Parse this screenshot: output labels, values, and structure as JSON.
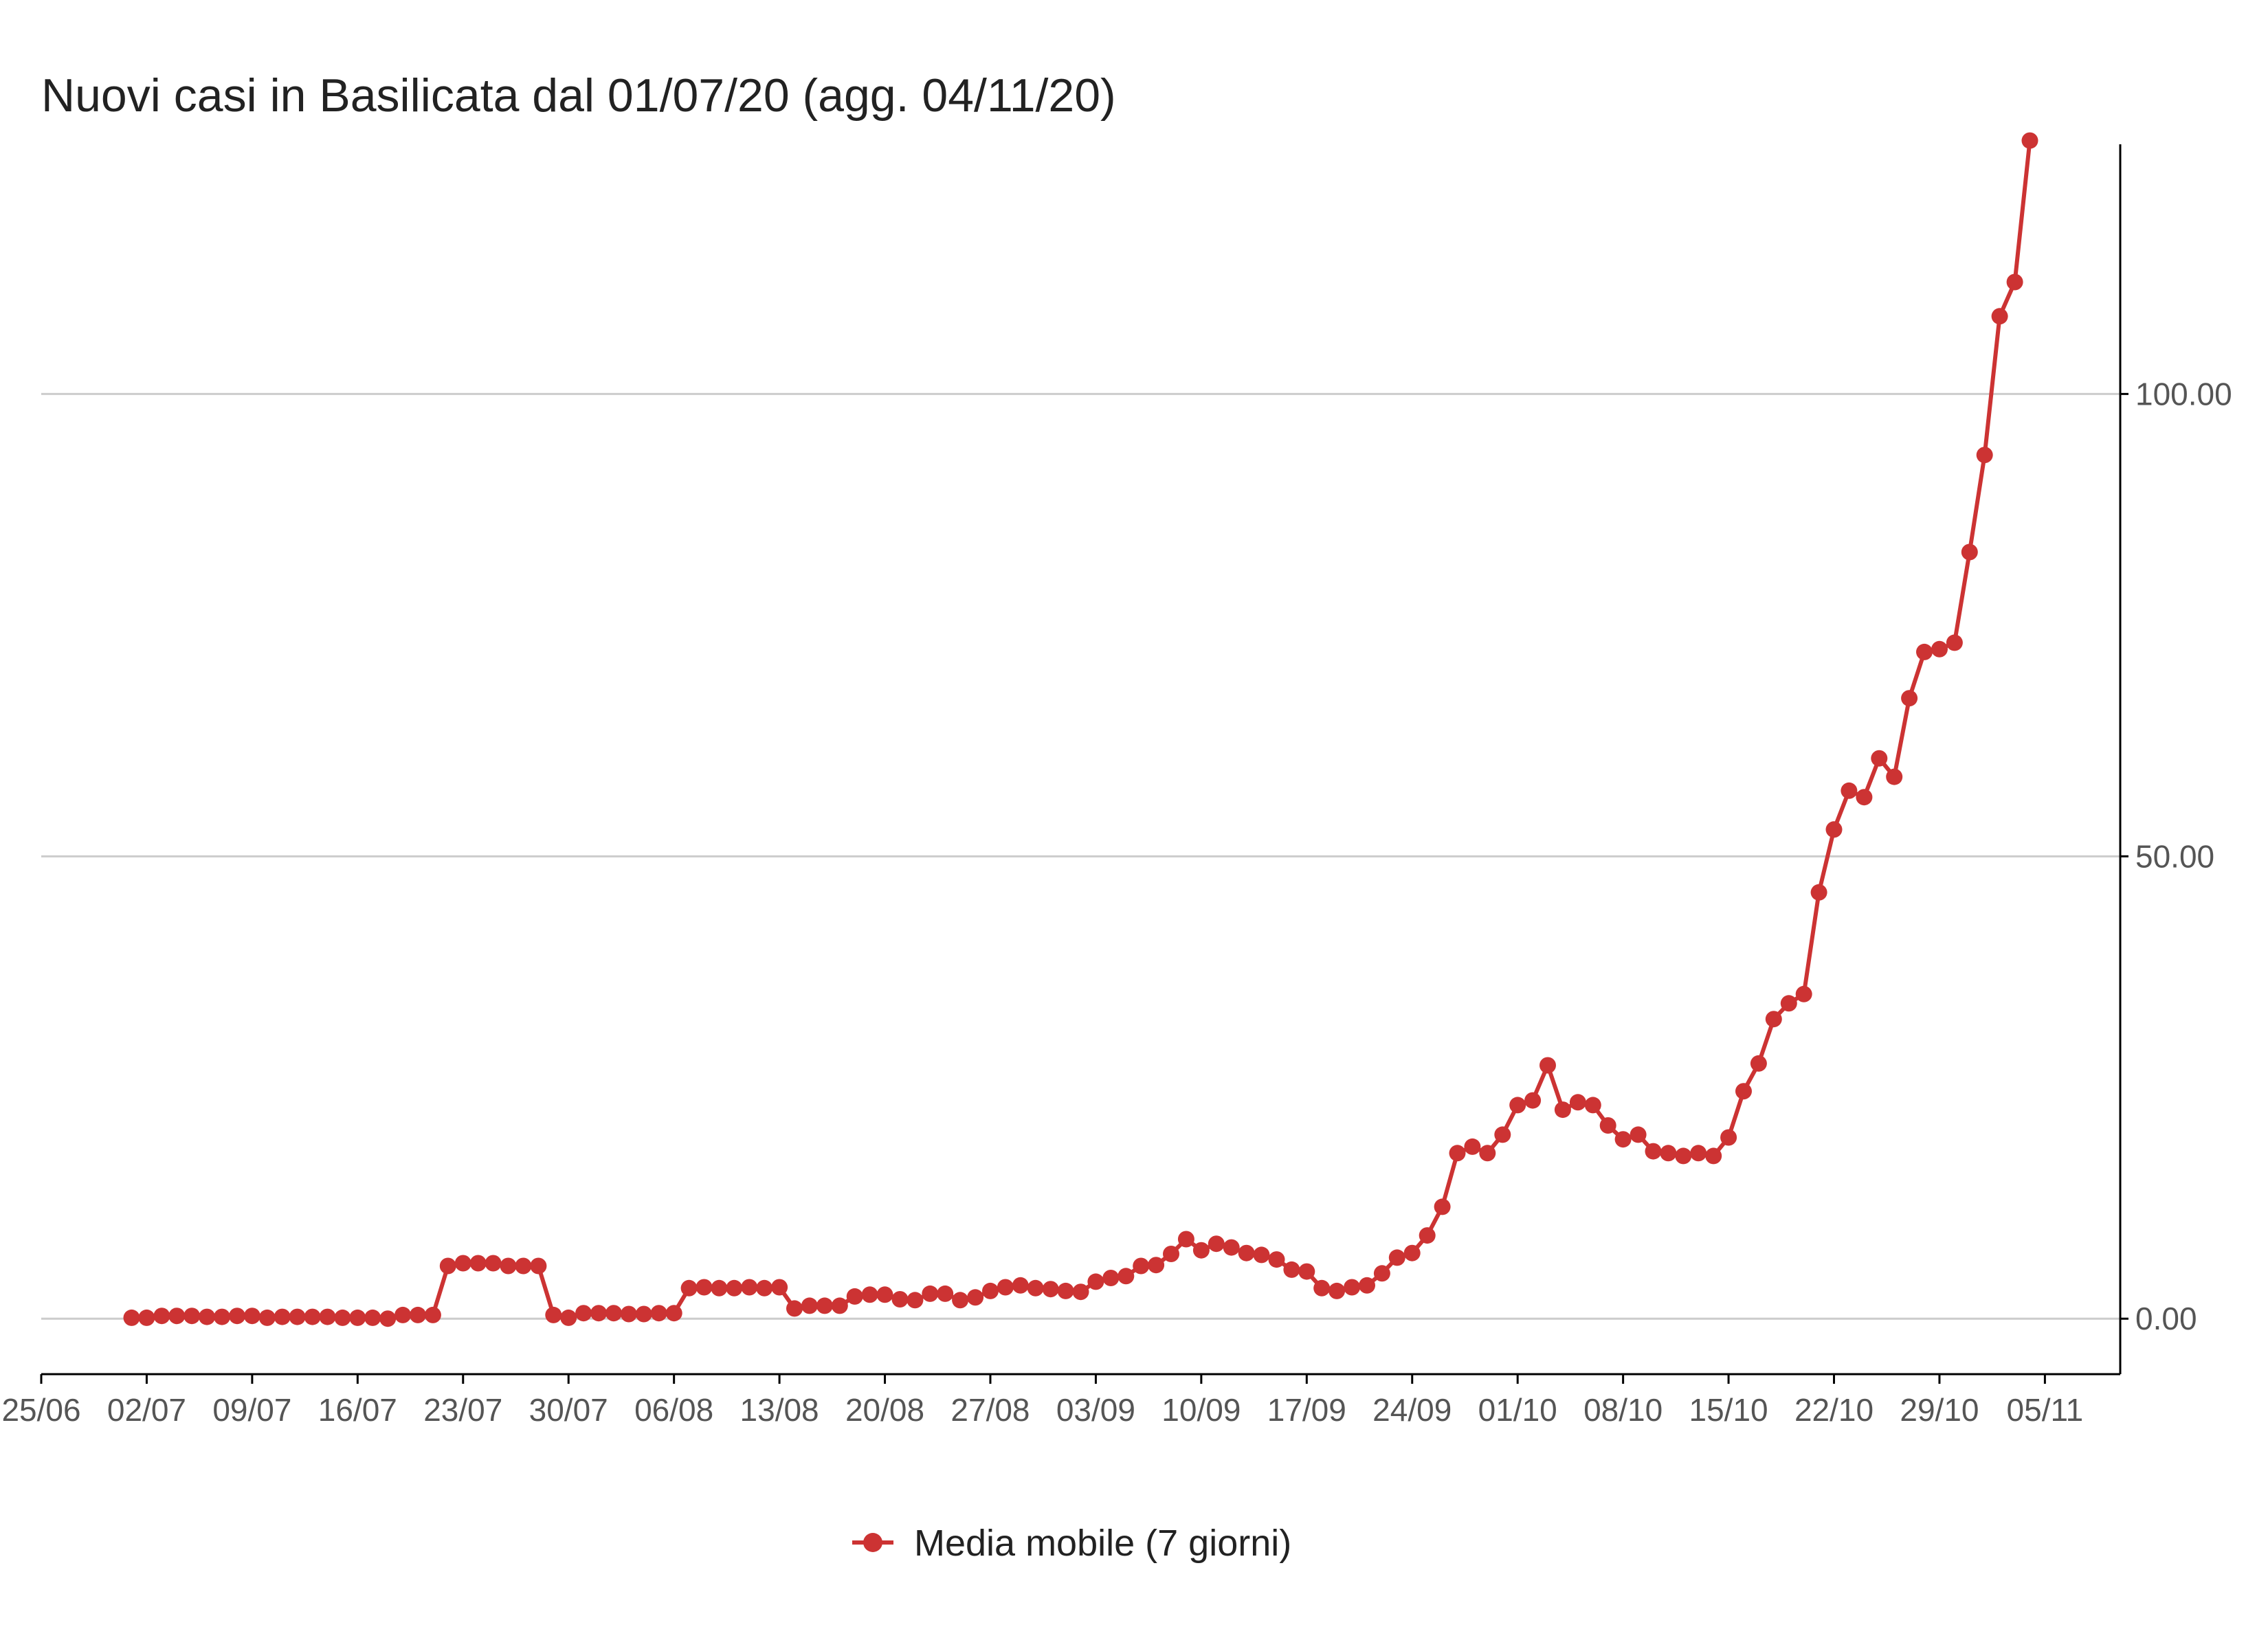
{
  "title": "Nuovi casi in Basilicata dal 01/07/20 (agg. 04/11/20)",
  "colors": {
    "series": "#cc3333",
    "grid": "#cccccc",
    "axis": "#000000"
  },
  "chart_data": {
    "type": "line",
    "title": "Nuovi casi in Basilicata dal 01/07/20 (agg. 04/11/20)",
    "xlabel": "",
    "ylabel": "",
    "x_start": "2020-07-01",
    "x_end": "2020-11-04",
    "xlim": [
      "2020-06-25",
      "2020-11-10"
    ],
    "ylim": [
      -6,
      127
    ],
    "x_ticks": [
      {
        "date": "2020-06-25",
        "label": "25/06"
      },
      {
        "date": "2020-07-02",
        "label": "02/07"
      },
      {
        "date": "2020-07-09",
        "label": "09/07"
      },
      {
        "date": "2020-07-16",
        "label": "16/07"
      },
      {
        "date": "2020-07-23",
        "label": "23/07"
      },
      {
        "date": "2020-07-30",
        "label": "30/07"
      },
      {
        "date": "2020-08-06",
        "label": "06/08"
      },
      {
        "date": "2020-08-13",
        "label": "13/08"
      },
      {
        "date": "2020-08-20",
        "label": "20/08"
      },
      {
        "date": "2020-08-27",
        "label": "27/08"
      },
      {
        "date": "2020-09-03",
        "label": "03/09"
      },
      {
        "date": "2020-09-10",
        "label": "10/09"
      },
      {
        "date": "2020-09-17",
        "label": "17/09"
      },
      {
        "date": "2020-09-24",
        "label": "24/09"
      },
      {
        "date": "2020-10-01",
        "label": "01/10"
      },
      {
        "date": "2020-10-08",
        "label": "08/10"
      },
      {
        "date": "2020-10-15",
        "label": "15/10"
      },
      {
        "date": "2020-10-22",
        "label": "22/10"
      },
      {
        "date": "2020-10-29",
        "label": "29/10"
      },
      {
        "date": "2020-11-05",
        "label": "05/11"
      }
    ],
    "y_ticks": [
      {
        "value": 0,
        "label": "0.00"
      },
      {
        "value": 50,
        "label": "50.00"
      },
      {
        "value": 100,
        "label": "100.00"
      }
    ],
    "y_axis_position": "right",
    "grid": "horizontal",
    "legend_position": "bottom",
    "series": [
      {
        "name": "Media mobile (7 giorni)",
        "marker": "circle",
        "values": [
          0.1,
          0.1,
          0.3,
          0.3,
          0.3,
          0.2,
          0.2,
          0.3,
          0.3,
          0.1,
          0.2,
          0.2,
          0.2,
          0.2,
          0.1,
          0.1,
          0.1,
          0.0,
          0.4,
          0.4,
          0.4,
          5.7,
          6.0,
          6.0,
          6.0,
          5.7,
          5.7,
          5.7,
          0.4,
          0.1,
          0.6,
          0.6,
          0.6,
          0.5,
          0.5,
          0.6,
          0.6,
          3.3,
          3.4,
          3.3,
          3.3,
          3.4,
          3.3,
          3.4,
          1.1,
          1.4,
          1.4,
          1.4,
          2.4,
          2.6,
          2.6,
          2.1,
          2.0,
          2.7,
          2.7,
          2.0,
          2.3,
          3.0,
          3.4,
          3.6,
          3.3,
          3.2,
          3.0,
          2.9,
          4.0,
          4.4,
          4.6,
          5.7,
          5.8,
          7.0,
          8.6,
          7.4,
          8.1,
          7.7,
          7.1,
          6.9,
          6.4,
          5.3,
          5.1,
          3.3,
          3.0,
          3.4,
          3.6,
          4.9,
          6.6,
          7.1,
          9.0,
          12.1,
          17.9,
          18.6,
          17.9,
          19.9,
          23.1,
          23.6,
          27.4,
          22.6,
          23.4,
          23.1,
          20.9,
          19.4,
          19.9,
          18.1,
          17.9,
          17.6,
          17.9,
          17.6,
          19.6,
          24.6,
          27.6,
          32.4,
          34.1,
          35.1,
          46.1,
          52.9,
          57.1,
          56.4,
          60.6,
          58.6,
          67.1,
          72.1,
          72.4,
          73.1,
          82.9,
          93.4,
          108.4,
          112.1,
          127.4
        ]
      }
    ]
  },
  "legend": {
    "items": [
      {
        "label": "Media mobile (7 giorni)"
      }
    ]
  }
}
